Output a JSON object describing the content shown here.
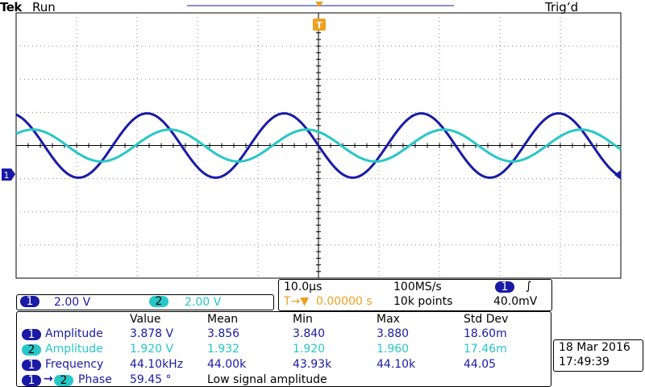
{
  "header": {
    "brand": "Tek",
    "run_state": "Run",
    "trigger_state": "Trig’d"
  },
  "markers": {
    "ch1_marker": "1",
    "trigger_marker": "T"
  },
  "scale": {
    "ch1_label": "1",
    "ch1_volts": "2.00 V",
    "ch2_label": "2",
    "ch2_volts": "2.00 V"
  },
  "timebase": {
    "time_per_div": "10.0µs",
    "sample_rate": "100MS/s",
    "trigger_position": "0.00000 s",
    "trigger_position_prefix": "T→▼",
    "record_length": "10k points",
    "trigger_channel": "1",
    "trigger_slope": "∫",
    "trigger_level": "40.0mV"
  },
  "measurements": {
    "headers": [
      "Value",
      "Mean",
      "Min",
      "Max",
      "Std Dev"
    ],
    "rows": [
      {
        "ch": "1",
        "name": "Amplitude",
        "value": "3.878 V",
        "mean": "3.856",
        "min": "3.840",
        "max": "3.880",
        "std": "18.60m"
      },
      {
        "ch": "2",
        "name": "Amplitude",
        "value": "1.920 V",
        "mean": "1.932",
        "min": "1.920",
        "max": "1.960",
        "std": "17.46m"
      },
      {
        "ch": "1",
        "name": "Frequency",
        "value": "44.10kHz",
        "mean": "44.00k",
        "min": "43.93k",
        "max": "44.10k",
        "std": "44.05"
      },
      {
        "ch": "1",
        "ch_b": "2",
        "name": "Phase",
        "value": "59.45 °",
        "note": "Low signal amplitude"
      }
    ],
    "phase_arrow": "→"
  },
  "datetime": {
    "date": "18 Mar  2016",
    "time": "17:49:39"
  },
  "chart_data": {
    "type": "line",
    "title": "",
    "xlabel": "",
    "ylabel": "",
    "x_divisions": 10,
    "y_divisions": 8,
    "volts_per_div": 2.0,
    "time_per_div_us": 10.0,
    "xlim_us": [
      0,
      100
    ],
    "ylim_div": [
      -4,
      4
    ],
    "series": [
      {
        "name": "CH1",
        "color": "#1a1aa6",
        "amplitude_v": 3.878,
        "frequency_khz": 44.1,
        "phase_deg": 0,
        "offset_div": 0
      },
      {
        "name": "CH2",
        "color": "#27c7c7",
        "amplitude_v": 1.92,
        "frequency_khz": 44.1,
        "phase_deg": 59.45,
        "offset_div": 0
      }
    ]
  }
}
